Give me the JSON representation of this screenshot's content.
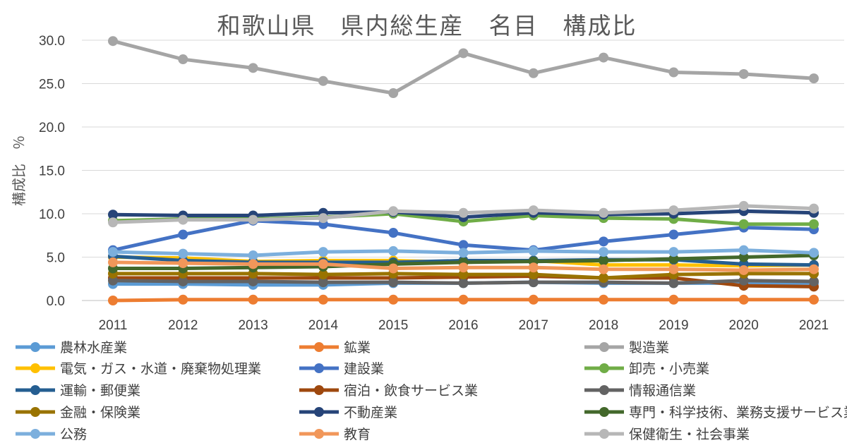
{
  "chart_data": {
    "type": "line",
    "title": "和歌山県　県内総生産　名目　構成比",
    "ylabel": "構成比　％",
    "xlabel": "",
    "x": [
      2011,
      2012,
      2013,
      2014,
      2015,
      2016,
      2017,
      2018,
      2019,
      2020,
      2021
    ],
    "x_tick_labels": [
      "2011",
      "2012",
      "2013",
      "2014",
      "2015",
      "2016",
      "2017",
      "2018",
      "2019",
      "2020",
      "2021"
    ],
    "ylim": [
      0,
      30
    ],
    "y_ticks": [
      0,
      5,
      10,
      15,
      20,
      25,
      30
    ],
    "y_tick_labels": [
      "0.0",
      "5.0",
      "10.0",
      "15.0",
      "20.0",
      "25.0",
      "30.0"
    ],
    "grid": true,
    "legend_position": "bottom",
    "series": [
      {
        "name": "農林水産業",
        "color": "#5B9BD5",
        "values": [
          1.9,
          1.9,
          1.8,
          1.8,
          2.0,
          2.0,
          2.1,
          2.0,
          2.0,
          2.0,
          2.0
        ]
      },
      {
        "name": "鉱業",
        "color": "#ED7D31",
        "values": [
          0.0,
          0.1,
          0.1,
          0.1,
          0.1,
          0.1,
          0.1,
          0.1,
          0.1,
          0.1,
          0.1
        ]
      },
      {
        "name": "製造業",
        "color": "#A5A5A5",
        "values": [
          29.9,
          27.8,
          26.8,
          25.3,
          23.9,
          28.5,
          26.2,
          28.0,
          26.3,
          26.1,
          25.6
        ]
      },
      {
        "name": "電気・ガス・水道・廃棄物処理業",
        "color": "#FFC000",
        "values": [
          5.0,
          4.9,
          4.5,
          4.6,
          4.6,
          4.4,
          4.6,
          4.1,
          4.1,
          4.0,
          4.1
        ]
      },
      {
        "name": "建設業",
        "color": "#4472C4",
        "values": [
          5.8,
          7.6,
          9.2,
          8.8,
          7.8,
          6.4,
          5.8,
          6.8,
          7.6,
          8.4,
          8.2
        ]
      },
      {
        "name": "卸売・小売業",
        "color": "#70AD47",
        "values": [
          9.2,
          9.4,
          9.4,
          9.6,
          10.0,
          9.1,
          9.8,
          9.5,
          9.4,
          8.8,
          8.8
        ]
      },
      {
        "name": "運輸・郵便業",
        "color": "#255E91",
        "values": [
          5.1,
          4.6,
          4.4,
          4.4,
          4.4,
          4.6,
          4.6,
          4.7,
          4.7,
          4.2,
          4.1
        ]
      },
      {
        "name": "宿泊・飲食サービス業",
        "color": "#9E480E",
        "values": [
          2.6,
          2.6,
          2.6,
          2.6,
          2.6,
          2.7,
          2.8,
          2.6,
          2.6,
          1.7,
          1.6
        ]
      },
      {
        "name": "情報通信業",
        "color": "#636363",
        "values": [
          2.3,
          2.2,
          2.2,
          2.1,
          2.1,
          2.0,
          2.1,
          2.1,
          2.0,
          2.3,
          2.2
        ]
      },
      {
        "name": "金融・保険業",
        "color": "#997300",
        "values": [
          3.1,
          3.1,
          3.1,
          3.0,
          3.1,
          3.0,
          3.0,
          2.6,
          3.0,
          3.1,
          3.1
        ]
      },
      {
        "name": "不動産業",
        "color": "#264478",
        "values": [
          9.9,
          9.8,
          9.8,
          10.1,
          10.2,
          9.6,
          10.1,
          9.9,
          10.0,
          10.3,
          10.1
        ]
      },
      {
        "name": "専門・科学技術、業務支援サービス業",
        "color": "#43682B",
        "values": [
          3.7,
          3.7,
          3.8,
          3.9,
          4.2,
          4.4,
          4.5,
          4.6,
          4.8,
          5.0,
          5.2
        ]
      },
      {
        "name": "公務",
        "color": "#7CAFDD",
        "values": [
          5.6,
          5.4,
          5.2,
          5.6,
          5.7,
          5.5,
          5.7,
          5.6,
          5.6,
          5.8,
          5.5
        ]
      },
      {
        "name": "教育",
        "color": "#F1975A",
        "values": [
          4.4,
          4.3,
          4.2,
          4.2,
          3.7,
          3.8,
          3.8,
          3.6,
          3.6,
          3.5,
          3.6
        ]
      },
      {
        "name": "保健衛生・社会事業",
        "color": "#B7B7B7",
        "values": [
          9.0,
          9.3,
          9.3,
          9.5,
          10.3,
          10.1,
          10.4,
          10.1,
          10.4,
          10.9,
          10.6
        ]
      }
    ]
  }
}
